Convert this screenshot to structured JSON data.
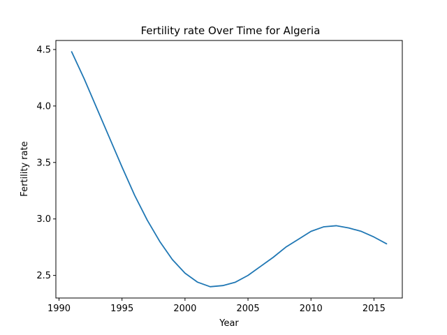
{
  "chart_data": {
    "type": "line",
    "title": "Fertility rate Over Time for Algeria",
    "xlabel": "Year",
    "ylabel": "Fertility rate",
    "xlim": [
      1989.75,
      2017.25
    ],
    "ylim": [
      2.3,
      4.58
    ],
    "x_ticks": [
      1990,
      1995,
      2000,
      2005,
      2010,
      2015
    ],
    "y_ticks": [
      2.5,
      3.0,
      3.5,
      4.0,
      4.5
    ],
    "x_tick_labels": [
      "1990",
      "1995",
      "2000",
      "2005",
      "2010",
      "2015"
    ],
    "y_tick_labels": [
      "2.5",
      "3.0",
      "3.5",
      "4.0",
      "4.5"
    ],
    "grid": false,
    "series": [
      {
        "color": "#1f77b4",
        "x": [
          1991,
          1992,
          1993,
          1994,
          1995,
          1996,
          1997,
          1998,
          1999,
          2000,
          2001,
          2002,
          2003,
          2004,
          2005,
          2006,
          2007,
          2008,
          2009,
          2010,
          2011,
          2012,
          2013,
          2014,
          2015,
          2016
        ],
        "y": [
          4.48,
          4.24,
          3.98,
          3.72,
          3.46,
          3.21,
          2.99,
          2.8,
          2.64,
          2.52,
          2.44,
          2.4,
          2.41,
          2.44,
          2.5,
          2.58,
          2.66,
          2.75,
          2.82,
          2.89,
          2.93,
          2.94,
          2.92,
          2.89,
          2.84,
          2.78
        ]
      }
    ]
  }
}
